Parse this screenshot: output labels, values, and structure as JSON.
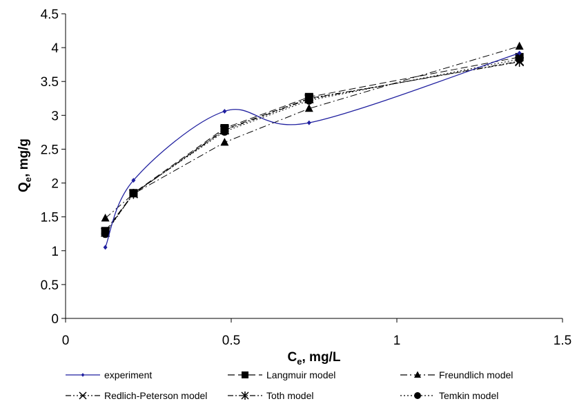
{
  "chart_data": {
    "type": "line",
    "xlabel_main": "C",
    "xlabel_sub": "e",
    "xlabel_rest": ", mg/L",
    "ylabel_main": "Q",
    "ylabel_sub": "e",
    "ylabel_rest": ", mg/g",
    "xlim": [
      0,
      1.5
    ],
    "ylim": [
      0,
      4.5
    ],
    "x_ticks": [
      "0",
      "0.5",
      "1",
      "1.5"
    ],
    "y_ticks": [
      "0",
      "0.5",
      "1",
      "1.5",
      "2",
      "2.5",
      "3",
      "3.5",
      "4",
      "4.5"
    ],
    "x_tick_values": [
      0,
      0.5,
      1,
      1.5
    ],
    "y_tick_values": [
      0,
      0.5,
      1,
      1.5,
      2,
      2.5,
      3,
      3.5,
      4,
      4.5
    ],
    "x": [
      0.12,
      0.205,
      0.48,
      0.735,
      1.37
    ],
    "grid": false,
    "legend_position": "bottom",
    "series": [
      {
        "name": "experiment",
        "values": [
          1.05,
          2.04,
          3.06,
          2.89,
          3.92
        ],
        "color": "#1f1f9f",
        "marker": "diamond",
        "dash": "",
        "smooth": true
      },
      {
        "name": "Langmuir model",
        "values": [
          1.29,
          1.85,
          2.81,
          3.27,
          3.86
        ],
        "color": "#000000",
        "marker": "square",
        "dash": "10,5",
        "smooth": false
      },
      {
        "name": "Freundlich model",
        "values": [
          1.48,
          1.84,
          2.6,
          3.1,
          4.02
        ],
        "color": "#000000",
        "marker": "triangle",
        "dash": "10,4,2,4",
        "smooth": false
      },
      {
        "name": "Redlich-Peterson model",
        "values": [
          1.27,
          1.84,
          2.78,
          3.24,
          3.8
        ],
        "color": "#000000",
        "marker": "x",
        "dash": "8,3,2,3,2,3",
        "smooth": false
      },
      {
        "name": "Toth model",
        "values": [
          1.27,
          1.84,
          2.79,
          3.25,
          3.79
        ],
        "color": "#000000",
        "marker": "star",
        "dash": "8,3,2,3",
        "smooth": false
      },
      {
        "name": "Temkin model",
        "values": [
          1.25,
          1.85,
          2.76,
          3.22,
          3.83
        ],
        "color": "#000000",
        "marker": "circle",
        "dash": "2,3",
        "smooth": false
      }
    ]
  }
}
